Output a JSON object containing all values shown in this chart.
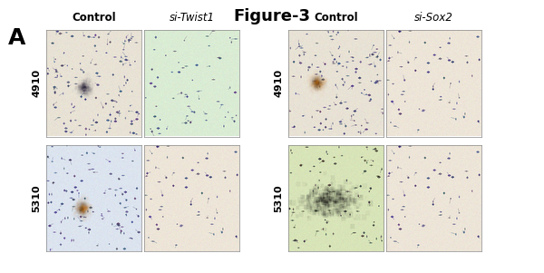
{
  "title": "Figure-3",
  "panel_label": "A",
  "col_labels_left": [
    "Control",
    "si-Twist1"
  ],
  "col_labels_right": [
    "Control",
    "si-Sox2"
  ],
  "row_labels": [
    "4910",
    "5310"
  ],
  "background_color": "#ffffff",
  "title_fontsize": 13,
  "title_fontweight": "bold",
  "panel_label_fontsize": 18,
  "panel_label_fontweight": "bold",
  "col_label_fontsize": 8.5,
  "row_label_fontsize": 8,
  "images": {
    "t4c_bg": "#e8e0d0",
    "t4c_cluster": "#1a1530",
    "t4c_orange": false,
    "t4s_bg": "#deecd8",
    "t4s_cluster": null,
    "t5c_bg": "#dde4ed",
    "t5c_cluster": "#2a1800",
    "t5c_orange": true,
    "t5s_bg": "#ede5d8",
    "t5s_cluster": null,
    "s4c_bg": "#e8e0d0",
    "s4c_cluster": "#2a1a10",
    "s4c_orange": true,
    "s4s_bg": "#ede5d8",
    "s4s_cluster": null,
    "s5c_bg": "#d8e4c0",
    "s5c_cluster": "#080808",
    "s5s_bg": "#ede5d8",
    "s5s_cluster": null
  }
}
